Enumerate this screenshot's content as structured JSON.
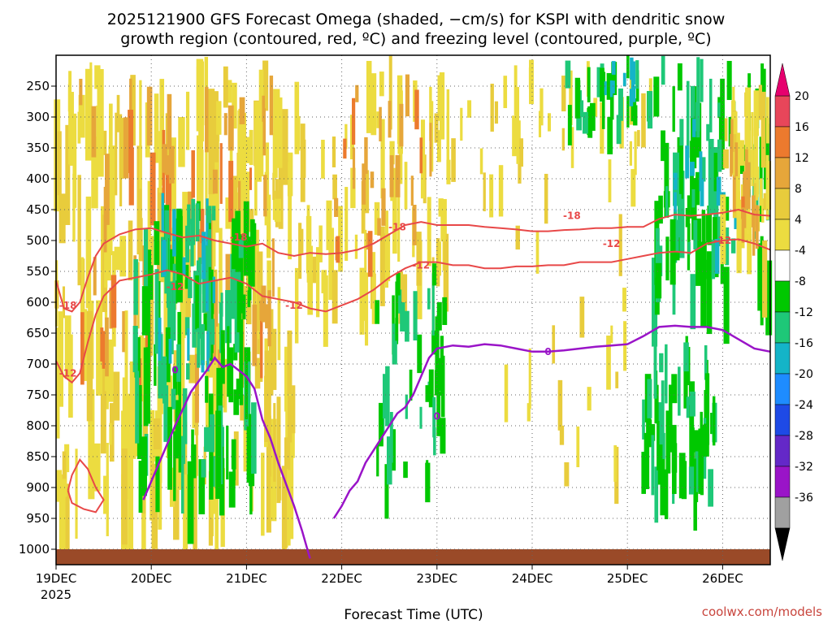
{
  "chart_data": {
    "type": "heatmap",
    "title_line1": "2025121900 GFS Forecast Omega (shaded, −cm/s) for KSPI with dendritic snow",
    "title_line2": "growth region (contoured, red, ºC) and freezing level (contoured, purple, ºC)",
    "xlabel": "Forecast Time (UTC)",
    "credit": "coolwx.com/models",
    "x_ticks": [
      {
        "hour": 0,
        "label": "19DEC",
        "sublabel": "2025"
      },
      {
        "hour": 24,
        "label": "20DEC"
      },
      {
        "hour": 48,
        "label": "21DEC"
      },
      {
        "hour": 72,
        "label": "22DEC"
      },
      {
        "hour": 96,
        "label": "23DEC"
      },
      {
        "hour": 120,
        "label": "24DEC"
      },
      {
        "hour": 144,
        "label": "25DEC"
      },
      {
        "hour": 168,
        "label": "26DEC"
      }
    ],
    "x_range_hours": [
      0,
      180
    ],
    "y_ticks": [
      "250",
      "300",
      "350",
      "400",
      "450",
      "500",
      "550",
      "600",
      "650",
      "700",
      "750",
      "800",
      "850",
      "900",
      "950",
      "1000"
    ],
    "y_range_hpa": [
      200,
      1025
    ],
    "colorbar_ticks": [
      "20",
      "16",
      "12",
      "8",
      "4",
      "-4",
      "-8",
      "-12",
      "-16",
      "-20",
      "-24",
      "-28",
      "-32",
      "-36"
    ],
    "colorbar_colors": [
      "#e8465a",
      "#ec7a2e",
      "#e6a63a",
      "#e8cc3c",
      "#ecdc40",
      "#ffffff",
      "#00c800",
      "#1ec878",
      "#14b4c8",
      "#1e8cff",
      "#1e4ae6",
      "#6428c8",
      "#9a14c8",
      "#a0a0a0"
    ],
    "colorbar_top_cap": "#e6006e",
    "colorbar_bottom_cap": "#000000",
    "ground_color": "#9a4a28",
    "contour_labels": [
      {
        "text": "-18",
        "color": "#e84848"
      },
      {
        "text": "-18",
        "color": "#e84848"
      },
      {
        "text": "-18",
        "color": "#e84848"
      },
      {
        "text": "-18",
        "color": "#e84848"
      },
      {
        "text": "-12",
        "color": "#e84848"
      },
      {
        "text": "-12",
        "color": "#e84848"
      },
      {
        "text": "-12",
        "color": "#e84848"
      },
      {
        "text": "-12",
        "color": "#e84848"
      },
      {
        "text": "-12",
        "color": "#e84848"
      },
      {
        "text": "-12",
        "color": "#e84848"
      },
      {
        "text": "0",
        "color": "#9a14c8"
      },
      {
        "text": "0",
        "color": "#9a14c8"
      },
      {
        "text": "0",
        "color": "#9a14c8"
      }
    ],
    "contour_18_hpa": [
      [
        0,
        565
      ],
      [
        2,
        610
      ],
      [
        4,
        615
      ],
      [
        6,
        600
      ],
      [
        8,
        560
      ],
      [
        10,
        525
      ],
      [
        12,
        505
      ],
      [
        16,
        490
      ],
      [
        20,
        482
      ],
      [
        24,
        480
      ],
      [
        28,
        488
      ],
      [
        32,
        495
      ],
      [
        36,
        492
      ],
      [
        40,
        500
      ],
      [
        44,
        505
      ],
      [
        48,
        510
      ],
      [
        52,
        505
      ],
      [
        56,
        520
      ],
      [
        60,
        525
      ],
      [
        64,
        520
      ],
      [
        68,
        522
      ],
      [
        72,
        520
      ],
      [
        76,
        515
      ],
      [
        80,
        505
      ],
      [
        84,
        490
      ],
      [
        88,
        475
      ],
      [
        92,
        470
      ],
      [
        96,
        475
      ],
      [
        100,
        475
      ],
      [
        104,
        475
      ],
      [
        108,
        478
      ],
      [
        112,
        480
      ],
      [
        116,
        482
      ],
      [
        120,
        485
      ],
      [
        124,
        485
      ],
      [
        128,
        483
      ],
      [
        132,
        482
      ],
      [
        136,
        480
      ],
      [
        140,
        480
      ],
      [
        144,
        478
      ],
      [
        148,
        478
      ],
      [
        152,
        465
      ],
      [
        156,
        458
      ],
      [
        160,
        460
      ],
      [
        164,
        458
      ],
      [
        168,
        455
      ],
      [
        172,
        450
      ],
      [
        176,
        458
      ],
      [
        180,
        460
      ]
    ],
    "contour_12_hpa": [
      [
        0,
        695
      ],
      [
        2,
        720
      ],
      [
        4,
        730
      ],
      [
        6,
        715
      ],
      [
        8,
        665
      ],
      [
        10,
        620
      ],
      [
        12,
        590
      ],
      [
        16,
        565
      ],
      [
        20,
        560
      ],
      [
        24,
        555
      ],
      [
        28,
        548
      ],
      [
        32,
        555
      ],
      [
        36,
        570
      ],
      [
        40,
        565
      ],
      [
        44,
        560
      ],
      [
        48,
        570
      ],
      [
        52,
        590
      ],
      [
        56,
        595
      ],
      [
        60,
        600
      ],
      [
        64,
        610
      ],
      [
        68,
        615
      ],
      [
        72,
        605
      ],
      [
        76,
        595
      ],
      [
        80,
        580
      ],
      [
        84,
        560
      ],
      [
        88,
        545
      ],
      [
        92,
        535
      ],
      [
        96,
        535
      ],
      [
        100,
        540
      ],
      [
        104,
        540
      ],
      [
        108,
        545
      ],
      [
        112,
        545
      ],
      [
        116,
        542
      ],
      [
        120,
        542
      ],
      [
        124,
        540
      ],
      [
        128,
        540
      ],
      [
        132,
        535
      ],
      [
        136,
        535
      ],
      [
        140,
        535
      ],
      [
        144,
        530
      ],
      [
        148,
        525
      ],
      [
        152,
        520
      ],
      [
        156,
        518
      ],
      [
        160,
        520
      ],
      [
        164,
        505
      ],
      [
        168,
        500
      ],
      [
        172,
        498
      ],
      [
        176,
        505
      ],
      [
        180,
        515
      ]
    ],
    "contour_12_lower_hpa": [
      [
        3,
        905
      ],
      [
        4,
        880
      ],
      [
        6,
        855
      ],
      [
        8,
        870
      ],
      [
        10,
        900
      ],
      [
        12,
        920
      ],
      [
        10,
        940
      ],
      [
        7,
        935
      ],
      [
        4,
        925
      ],
      [
        3,
        905
      ]
    ],
    "freezing_level_hpa": [
      [
        22,
        920
      ],
      [
        26,
        860
      ],
      [
        30,
        800
      ],
      [
        34,
        745
      ],
      [
        38,
        710
      ],
      [
        40,
        690
      ],
      [
        42,
        705
      ],
      [
        44,
        700
      ],
      [
        46,
        710
      ],
      [
        48,
        720
      ],
      [
        50,
        740
      ],
      [
        52,
        790
      ],
      [
        54,
        820
      ],
      [
        56,
        860
      ],
      [
        58,
        895
      ],
      [
        60,
        930
      ],
      [
        62,
        970
      ],
      [
        64,
        1015
      ]
    ],
    "freezing_level2_hpa": [
      [
        70,
        950
      ],
      [
        72,
        930
      ],
      [
        74,
        905
      ],
      [
        76,
        890
      ],
      [
        78,
        860
      ],
      [
        80,
        840
      ],
      [
        82,
        820
      ],
      [
        84,
        800
      ],
      [
        86,
        780
      ],
      [
        88,
        770
      ],
      [
        90,
        750
      ],
      [
        92,
        720
      ],
      [
        94,
        690
      ],
      [
        96,
        675
      ],
      [
        100,
        670
      ],
      [
        104,
        672
      ],
      [
        108,
        668
      ],
      [
        112,
        670
      ],
      [
        116,
        675
      ],
      [
        120,
        680
      ],
      [
        124,
        680
      ],
      [
        128,
        678
      ],
      [
        132,
        675
      ],
      [
        136,
        672
      ],
      [
        140,
        670
      ],
      [
        144,
        668
      ],
      [
        148,
        655
      ],
      [
        152,
        640
      ],
      [
        156,
        638
      ],
      [
        160,
        640
      ],
      [
        164,
        640
      ],
      [
        168,
        645
      ],
      [
        172,
        660
      ],
      [
        176,
        675
      ],
      [
        180,
        680
      ]
    ]
  }
}
